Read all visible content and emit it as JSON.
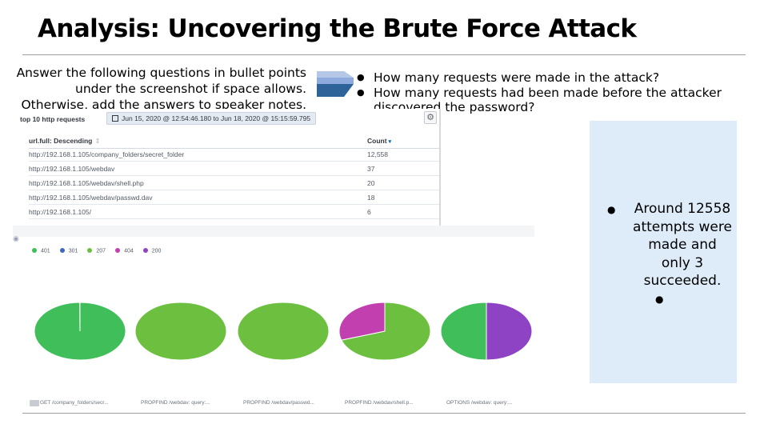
{
  "slide": {
    "title": "Analysis: Uncovering the Brute Force Attack",
    "instructions": [
      "Answer the following questions in bullet points",
      "under the screenshot if space allows.",
      "Otherwise, add the answers to speaker notes."
    ],
    "questions": [
      "How many requests were made in the attack?",
      "How many requests had been made before the attacker discovered the password?"
    ],
    "answer": {
      "text": "Around 12558 attempts were made and only 3 succeeded.",
      "empty_bullet": ""
    }
  },
  "kibana_table": {
    "title": "top 10 http requests",
    "time_range": "Jun 15, 2020 @ 12:54:46.180 to Jun 18, 2020 @ 15:15:59.795",
    "columns": [
      "url.full: Descending",
      "Count"
    ],
    "rows": [
      {
        "url": "http://192.168.1.105/company_folders/secret_folder",
        "count": "12,558"
      },
      {
        "url": "http://192.168.1.105/webdav",
        "count": "37"
      },
      {
        "url": "http://192.168.1.105/webdav/shell.php",
        "count": "20"
      },
      {
        "url": "http://192.168.1.105/webdav/passwd.dav",
        "count": "18"
      },
      {
        "url": "http://192.168.1.105/",
        "count": "6"
      }
    ],
    "icons": [
      "calendar-icon",
      "gear-icon",
      "sort-down-icon"
    ]
  },
  "chart_data": {
    "type": "pie",
    "legend": [
      {
        "label": "401",
        "color": "#3fbe5a"
      },
      {
        "label": "301",
        "color": "#3f67c0"
      },
      {
        "label": "207",
        "color": "#6dbf3f"
      },
      {
        "label": "404",
        "color": "#c23fb0"
      },
      {
        "label": "200",
        "color": "#8e43c5"
      }
    ],
    "pies": [
      {
        "label": "GET /company_folders/secr...",
        "slices": [
          {
            "status": "401",
            "fraction": 0.9992,
            "color": "#3fbe5a"
          },
          {
            "status": "301",
            "fraction": 0.0008,
            "color": "#ffffff"
          }
        ]
      },
      {
        "label": "PROPFIND /webdav: query:...",
        "slices": [
          {
            "status": "207",
            "fraction": 1.0,
            "color": "#6dbf3f"
          }
        ]
      },
      {
        "label": "PROPFIND /webdav/passwd...",
        "slices": [
          {
            "status": "207",
            "fraction": 1.0,
            "color": "#6dbf3f"
          }
        ]
      },
      {
        "label": "PROPFIND /webdav/shell.p...",
        "slices": [
          {
            "status": "207",
            "fraction": 0.7,
            "color": "#6dbf3f"
          },
          {
            "status": "404",
            "fraction": 0.3,
            "color": "#c23fb0"
          }
        ]
      },
      {
        "label": "OPTIONS /webdav: query:...",
        "slices": [
          {
            "status": "200",
            "fraction": 0.5,
            "color": "#8e43c5"
          },
          {
            "status": "401",
            "fraction": 0.5,
            "color": "#3fbe5a"
          }
        ]
      }
    ]
  }
}
